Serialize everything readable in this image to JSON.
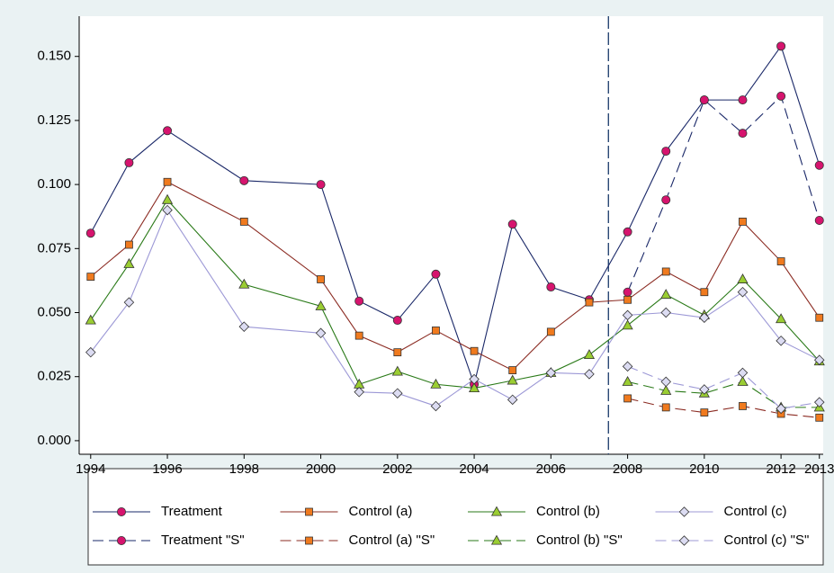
{
  "chart_data": {
    "type": "line",
    "x": [
      1994,
      1995,
      1996,
      1998,
      2000,
      2001,
      2002,
      2003,
      2004,
      2005,
      2006,
      2007,
      2008,
      2009,
      2010,
      2011,
      2012,
      2013
    ],
    "series": [
      {
        "name": "Treatment",
        "color": "#1a2868",
        "marker_color": "#d6146e",
        "marker": "circle",
        "dashed": false,
        "values": [
          0.081,
          0.1085,
          0.121,
          0.1015,
          0.1,
          0.0545,
          0.047,
          0.065,
          0.022,
          0.0845,
          0.06,
          0.055,
          0.0815,
          0.113,
          0.133,
          0.133,
          0.154,
          0.1075
        ]
      },
      {
        "name": "Control (a)",
        "color": "#8b2b22",
        "marker_color": "#f07a1e",
        "marker": "square",
        "dashed": false,
        "values": [
          0.064,
          0.0765,
          0.101,
          0.0855,
          0.063,
          0.041,
          0.0345,
          0.043,
          0.035,
          0.0275,
          0.0425,
          0.054,
          0.055,
          0.066,
          0.058,
          0.0855,
          0.07,
          0.048
        ]
      },
      {
        "name": "Control (b)",
        "color": "#2a7a18",
        "marker_color": "#9acd32",
        "marker": "triangle",
        "dashed": false,
        "values": [
          0.047,
          0.069,
          0.094,
          0.061,
          0.0525,
          0.022,
          0.027,
          0.022,
          0.0205,
          0.0235,
          0.0265,
          0.0335,
          0.045,
          0.057,
          0.049,
          0.063,
          0.0475,
          0.031
        ]
      },
      {
        "name": "Control (c)",
        "color": "#9c98d6",
        "marker_color": "#dcdcf2",
        "marker": "diamond",
        "dashed": false,
        "values": [
          0.0345,
          0.054,
          0.09,
          0.0445,
          0.042,
          0.019,
          0.0185,
          0.0135,
          0.024,
          0.016,
          0.0265,
          0.026,
          0.049,
          0.05,
          0.048,
          0.058,
          0.039,
          0.0315
        ]
      },
      {
        "name": "Treatment \"S\"",
        "color": "#1a2868",
        "marker_color": "#d6146e",
        "marker": "circle",
        "dashed": true,
        "values": [
          null,
          null,
          null,
          null,
          null,
          null,
          null,
          null,
          null,
          null,
          null,
          null,
          0.058,
          0.094,
          0.133,
          0.12,
          0.1345,
          0.086
        ]
      },
      {
        "name": "Control (a) \"S\"",
        "color": "#8b2b22",
        "marker_color": "#f07a1e",
        "marker": "square",
        "dashed": true,
        "values": [
          null,
          null,
          null,
          null,
          null,
          null,
          null,
          null,
          null,
          null,
          null,
          null,
          0.0165,
          0.013,
          0.011,
          0.0135,
          0.0105,
          0.009
        ]
      },
      {
        "name": "Control (b) \"S\"",
        "color": "#2a7a18",
        "marker_color": "#9acd32",
        "marker": "triangle",
        "dashed": true,
        "values": [
          null,
          null,
          null,
          null,
          null,
          null,
          null,
          null,
          null,
          null,
          null,
          null,
          0.023,
          0.0195,
          0.0185,
          0.023,
          0.013,
          0.013
        ]
      },
      {
        "name": "Control (c) \"S\"",
        "color": "#9c98d6",
        "marker_color": "#dcdcf2",
        "marker": "diamond",
        "dashed": true,
        "values": [
          null,
          null,
          null,
          null,
          null,
          null,
          null,
          null,
          null,
          null,
          null,
          null,
          0.029,
          0.023,
          0.02,
          0.0265,
          0.0125,
          0.015
        ]
      }
    ],
    "xlim": [
      1993.7,
      2013.1
    ],
    "xticks": [
      1994,
      1996,
      1998,
      2000,
      2002,
      2004,
      2006,
      2008,
      2010,
      2012,
      2013
    ],
    "ylim": [
      -0.0053,
      0.1657
    ],
    "yticks": [
      {
        "value": 0,
        "label": "0.000"
      },
      {
        "value": 0.025,
        "label": "0.025"
      },
      {
        "value": 0.05,
        "label": "0.050"
      },
      {
        "value": 0.075,
        "label": "0.075"
      },
      {
        "value": 0.1,
        "label": "0.100"
      },
      {
        "value": 0.125,
        "label": "0.125"
      },
      {
        "value": 0.15,
        "label": "0.150"
      }
    ],
    "vline": 2007.5,
    "vline_color": "#1a3a6a",
    "legend": "bottom",
    "legend_columns": 4
  }
}
